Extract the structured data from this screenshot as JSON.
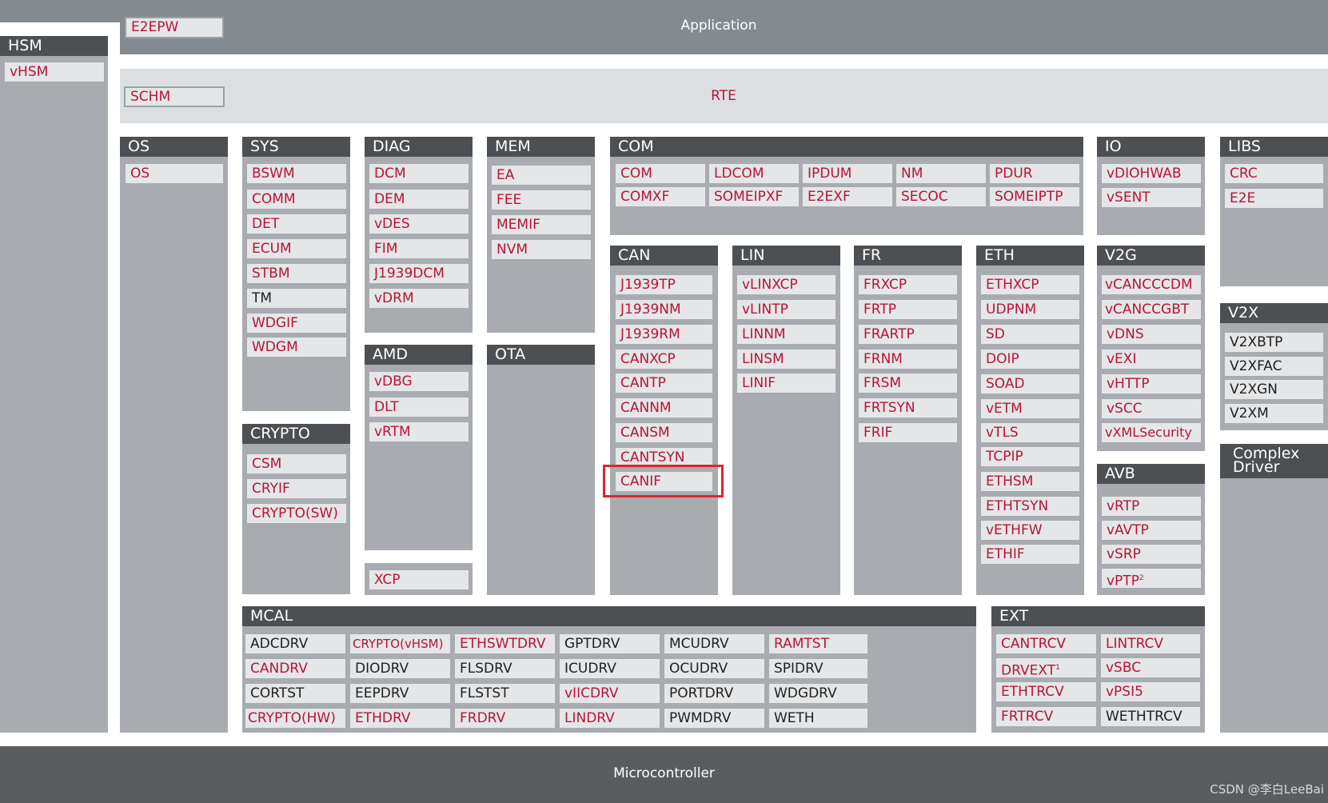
{
  "app": {
    "label": "Application",
    "e2epw": "E2EPW"
  },
  "hsm": {
    "title": "HSM",
    "items": [
      "vHSM"
    ]
  },
  "rte": {
    "label": "RTE",
    "schm": "SCHM"
  },
  "mcu": {
    "label": "Microcontroller"
  },
  "watermark": "CSDN @李白LeeBai",
  "os": {
    "title": "OS",
    "items": [
      "OS"
    ]
  },
  "sys": {
    "title": "SYS",
    "items": [
      "BSWM",
      "COMM",
      "DET",
      "ECUM",
      "STBM",
      "TM",
      "WDGIF",
      "WDGM"
    ]
  },
  "diag": {
    "title": "DIAG",
    "items": [
      "DCM",
      "DEM",
      "vDES",
      "FIM",
      "J1939DCM",
      "vDRM"
    ]
  },
  "mem": {
    "title": "MEM",
    "items": [
      "EA",
      "FEE",
      "MEMIF",
      "NVM"
    ]
  },
  "com": {
    "title": "COM",
    "row1": [
      "COM",
      "LDCOM",
      "IPDUM",
      "NM",
      "PDUR"
    ],
    "row2": [
      "COMXF",
      "SOMEIPXF",
      "E2EXF",
      "SECOC",
      "SOMEIPTP"
    ]
  },
  "io": {
    "title": "IO",
    "items": [
      "vDIOHWAB",
      "vSENT"
    ]
  },
  "libs": {
    "title": "LIBS",
    "items": [
      "CRC",
      "E2E"
    ]
  },
  "can": {
    "title": "CAN",
    "items": [
      "J1939TP",
      "J1939NM",
      "J1939RM",
      "CANXCP",
      "CANTP",
      "CANNM",
      "CANSM",
      "CANTSYN",
      "CANIF"
    ]
  },
  "lin": {
    "title": "LIN",
    "items": [
      "vLINXCP",
      "vLINTP",
      "LINNM",
      "LINSM",
      "LINIF"
    ]
  },
  "fr": {
    "title": "FR",
    "items": [
      "FRXCP",
      "FRTP",
      "FRARTP",
      "FRNM",
      "FRSM",
      "FRTSYN",
      "FRIF"
    ]
  },
  "eth": {
    "title": "ETH",
    "items": [
      "ETHXCP",
      "UDPNM",
      "SD",
      "DOIP",
      "SOAD",
      "vETM",
      "vTLS",
      "TCPIP",
      "ETHSM",
      "ETHTSYN",
      "vETHFW",
      "ETHIF"
    ]
  },
  "v2g": {
    "title": "V2G",
    "items": [
      "vCANCCCDM",
      "vCANCCGBT",
      "vDNS",
      "vEXI",
      "vHTTP",
      "vSCC",
      "vXMLSecurity"
    ]
  },
  "v2x": {
    "title": "V2X",
    "items": [
      "V2XBTP",
      "V2XFAC",
      "V2XGN",
      "V2XM"
    ]
  },
  "complex": {
    "line1": "Complex",
    "line2": "Driver"
  },
  "amd": {
    "title": "AMD",
    "items": [
      "vDBG",
      "DLT",
      "vRTM"
    ]
  },
  "ota": {
    "title": "OTA"
  },
  "xcp": {
    "items": [
      "XCP"
    ]
  },
  "crypto": {
    "title": "CRYPTO",
    "items": [
      "CSM",
      "CRYIF",
      "CRYPTO(SW)"
    ]
  },
  "avb": {
    "title": "AVB",
    "items": [
      "vRTP",
      "vAVTP",
      "vSRP",
      "vPTP"
    ],
    "ptp_sup": "2"
  },
  "mcal": {
    "title": "MCAL",
    "cols": [
      [
        "ADCDRV",
        "CANDRV",
        "CORTST",
        "CRYPTO(HW)"
      ],
      [
        "CRYPTO(vHSM)",
        "DIODRV",
        "EEPDRV",
        "ETHDRV"
      ],
      [
        "ETHSWTDRV",
        "FLSDRV",
        "FLSTST",
        "FRDRV"
      ],
      [
        "GPTDRV",
        "ICUDRV",
        "vIICDRV",
        "LINDRV"
      ],
      [
        "MCUDRV",
        "OCUDRV",
        "PORTDRV",
        "PWMDRV"
      ],
      [
        "RAMTST",
        "SPIDRV",
        "WDGDRV",
        "WETH"
      ]
    ]
  },
  "ext": {
    "title": "EXT",
    "col1": [
      "CANTRCV",
      "DRVEXT",
      "ETHTRCV",
      "FRTRCV"
    ],
    "col2": [
      "LINTRCV",
      "vSBC",
      "vPSI5",
      "WETHTRCV"
    ],
    "drvext_sup": "1"
  },
  "colors": {
    "red_text": "#b81436",
    "highlight": "#e0242c",
    "header": "#4d5053",
    "body": "#a8acb0",
    "item": "#e4e6e8"
  }
}
